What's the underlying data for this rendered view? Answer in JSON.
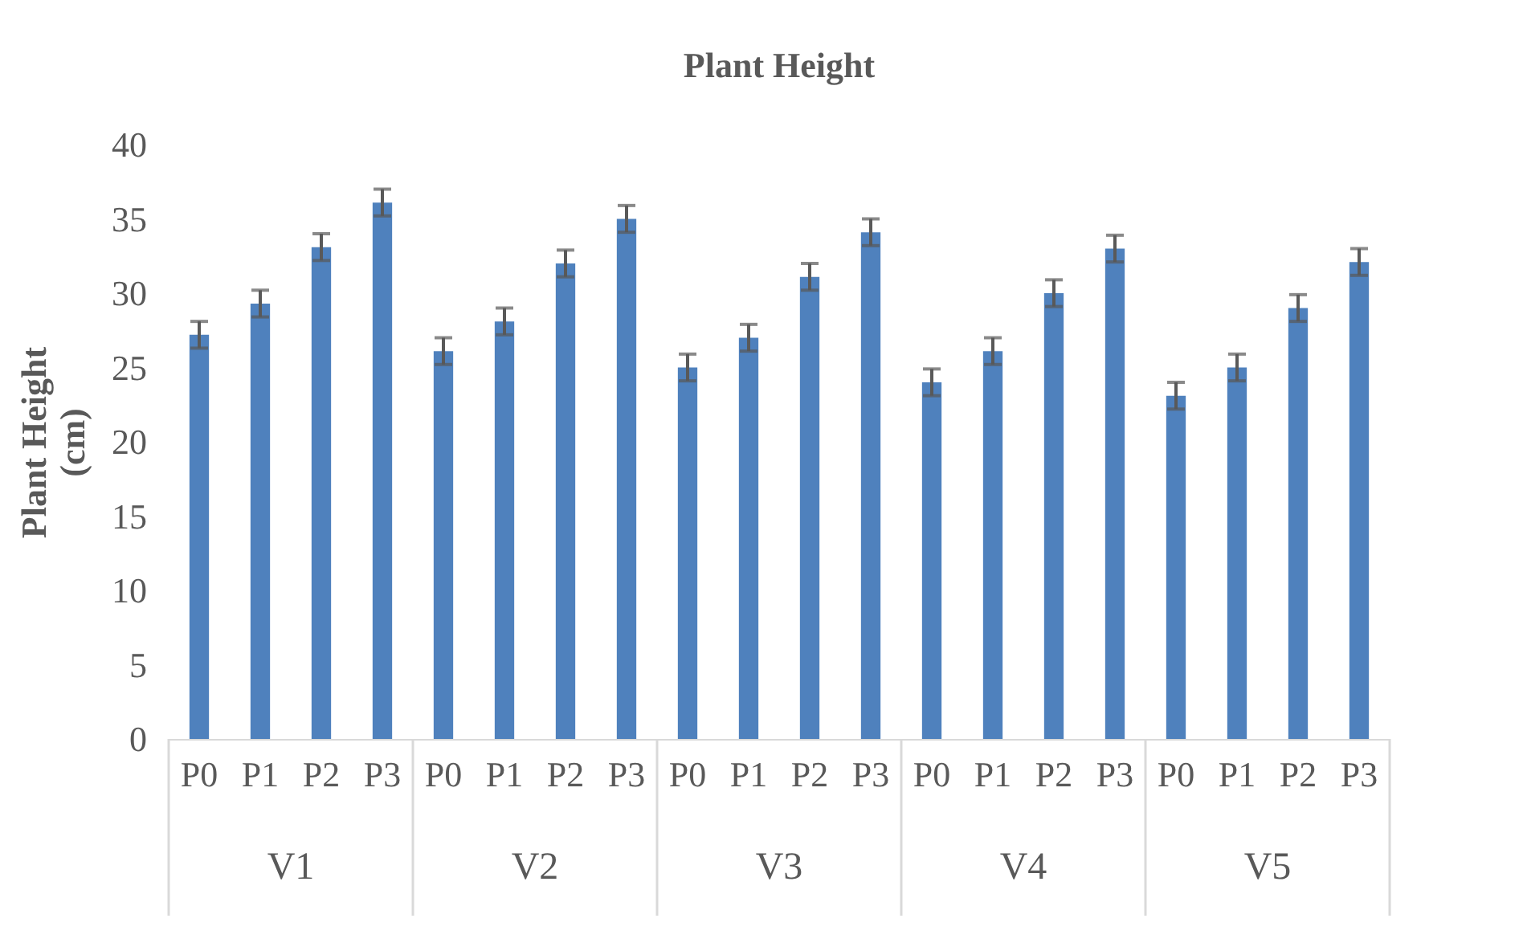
{
  "chart_data": {
    "type": "bar",
    "title": "Plant Height",
    "ylabel": "Plant Height (cm)",
    "categories": [
      "P0",
      "P1",
      "P2",
      "P3",
      "P0",
      "P1",
      "P2",
      "P3",
      "P0",
      "P1",
      "P2",
      "P3",
      "P0",
      "P1",
      "P2",
      "P3",
      "P0",
      "P1",
      "P2",
      "P3"
    ],
    "values": [
      27.2,
      29.3,
      33.1,
      36.1,
      26.1,
      28.1,
      32.0,
      35.0,
      25.0,
      27.0,
      31.1,
      34.1,
      24.0,
      26.1,
      30.0,
      33.0,
      23.1,
      25.0,
      29.0,
      32.1
    ],
    "errors": [
      0.9,
      0.9,
      0.9,
      0.9,
      0.9,
      0.9,
      0.9,
      0.9,
      0.9,
      0.9,
      0.9,
      0.9,
      0.9,
      0.9,
      0.9,
      0.9,
      0.9,
      0.9,
      0.9,
      0.9
    ],
    "color": "#4f81bd",
    "annotations": [
      "V1",
      "V2",
      "V3",
      "V4",
      "V5"
    ],
    "ylim": [
      0,
      40
    ],
    "yticks": [
      0,
      5,
      10,
      15,
      20,
      25,
      30,
      35,
      40
    ]
  }
}
